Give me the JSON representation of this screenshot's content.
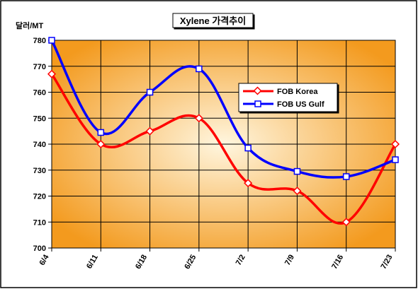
{
  "chart_data": {
    "type": "line",
    "title": "Xylene 가격추이",
    "ylabel": "달러/MT",
    "xlabel": "",
    "categories": [
      "6/4",
      "6/11",
      "6/18",
      "6/25",
      "7/2",
      "7/9",
      "7/16",
      "7/23"
    ],
    "ylim": [
      700,
      780
    ],
    "yticks": [
      700,
      710,
      720,
      730,
      740,
      750,
      760,
      770,
      780
    ],
    "grid": true,
    "legend_position": "right",
    "series": [
      {
        "name": "FOB Korea",
        "color": "#ff0000",
        "marker": "diamond",
        "values": [
          767,
          740,
          745,
          750,
          725,
          722,
          710,
          740
        ]
      },
      {
        "name": "FOB US Gulf",
        "color": "#0000ff",
        "marker": "square",
        "values": [
          780,
          744.5,
          760,
          769,
          738.5,
          729.5,
          727.5,
          734
        ]
      }
    ],
    "colors": {
      "plot_center": "#fff6df",
      "plot_edge": "#f39a1e"
    }
  }
}
